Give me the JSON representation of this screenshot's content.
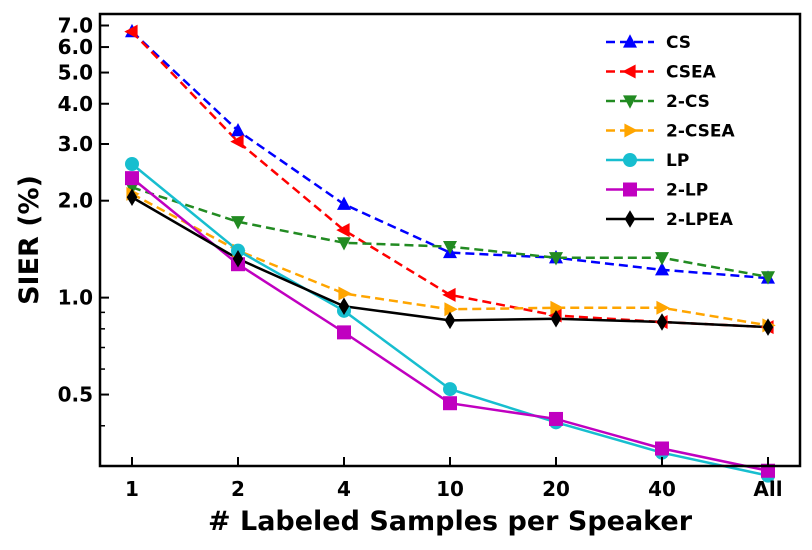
{
  "chart_data": {
    "type": "line",
    "xlabel": "# Labeled Samples per Speaker",
    "ylabel": "SIER (%)",
    "categories": [
      "1",
      "2",
      "4",
      "10",
      "20",
      "40",
      "All"
    ],
    "y_scale": "log",
    "ylim": [
      0.3,
      7.6
    ],
    "y_ticks": [
      {
        "value": 0.5,
        "label": "0.5"
      },
      {
        "value": 1.0,
        "label": "1.0"
      },
      {
        "value": 2.0,
        "label": "2.0"
      },
      {
        "value": 3.0,
        "label": "3.0"
      },
      {
        "value": 4.0,
        "label": "4.0"
      },
      {
        "value": 5.0,
        "label": "5.0"
      },
      {
        "value": 6.0,
        "label": "6.0"
      },
      {
        "value": 7.0,
        "label": "7.0"
      }
    ],
    "y_minor_ticks": [
      0.4,
      0.6,
      0.7,
      0.8,
      0.9
    ],
    "legend_position": "top-right",
    "grid": false,
    "series": [
      {
        "name": "CS",
        "color": "#0000ff",
        "dash": "dashed",
        "marker": "triangle-up",
        "values": [
          6.7,
          3.3,
          1.95,
          1.38,
          1.33,
          1.22,
          1.15
        ]
      },
      {
        "name": "CSEA",
        "color": "#ff0000",
        "dash": "dashed",
        "marker": "triangle-left",
        "values": [
          6.7,
          3.05,
          1.62,
          1.02,
          0.88,
          0.84,
          0.81
        ]
      },
      {
        "name": "2-CS",
        "color": "#228b22",
        "dash": "dashed",
        "marker": "triangle-down",
        "values": [
          2.2,
          1.72,
          1.48,
          1.44,
          1.33,
          1.33,
          1.16
        ]
      },
      {
        "name": "2-CSEA",
        "color": "#ffa500",
        "dash": "dashed",
        "marker": "triangle-right",
        "values": [
          2.1,
          1.4,
          1.03,
          0.92,
          0.93,
          0.93,
          0.82
        ]
      },
      {
        "name": "LP",
        "color": "#17becf",
        "dash": "solid",
        "marker": "circle",
        "values": [
          2.6,
          1.4,
          0.91,
          0.52,
          0.41,
          0.33,
          0.28
        ]
      },
      {
        "name": "2-LP",
        "color": "#c000c0",
        "dash": "solid",
        "marker": "square",
        "values": [
          2.35,
          1.27,
          0.78,
          0.47,
          0.42,
          0.34,
          0.29
        ]
      },
      {
        "name": "2-LPEA",
        "color": "#000000",
        "dash": "solid",
        "marker": "diamond",
        "values": [
          2.05,
          1.32,
          0.94,
          0.85,
          0.86,
          0.84,
          0.81
        ]
      }
    ]
  }
}
